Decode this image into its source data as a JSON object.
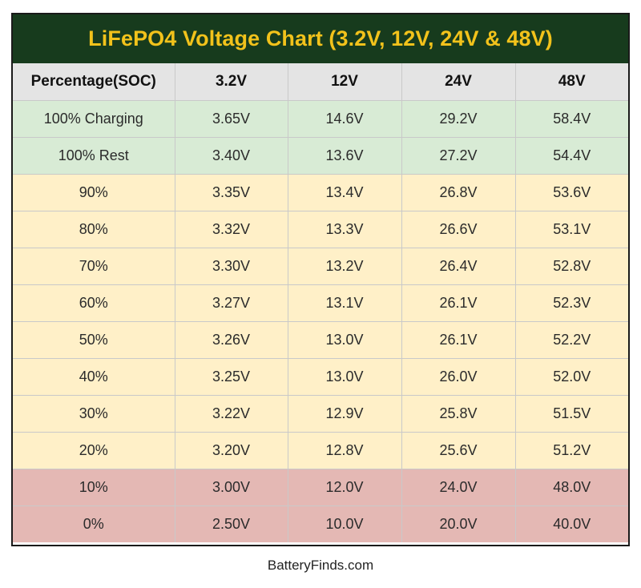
{
  "chart_data": {
    "type": "table",
    "title": "LiFePO4 Voltage Chart (3.2V, 12V, 24V & 48V)",
    "columns": [
      "Percentage(SOC)",
      "3.2V",
      "12V",
      "24V",
      "48V"
    ],
    "rows": [
      {
        "soc": "100% Charging",
        "values": [
          "3.65V",
          "14.6V",
          "29.2V",
          "58.4V"
        ],
        "band": "green"
      },
      {
        "soc": "100% Rest",
        "values": [
          "3.40V",
          "13.6V",
          "27.2V",
          "54.4V"
        ],
        "band": "green"
      },
      {
        "soc": "90%",
        "values": [
          "3.35V",
          "13.4V",
          "26.8V",
          "53.6V"
        ],
        "band": "yellow"
      },
      {
        "soc": "80%",
        "values": [
          "3.32V",
          "13.3V",
          "26.6V",
          "53.1V"
        ],
        "band": "yellow"
      },
      {
        "soc": "70%",
        "values": [
          "3.30V",
          "13.2V",
          "26.4V",
          "52.8V"
        ],
        "band": "yellow"
      },
      {
        "soc": "60%",
        "values": [
          "3.27V",
          "13.1V",
          "26.1V",
          "52.3V"
        ],
        "band": "yellow"
      },
      {
        "soc": "50%",
        "values": [
          "3.26V",
          "13.0V",
          "26.1V",
          "52.2V"
        ],
        "band": "yellow"
      },
      {
        "soc": "40%",
        "values": [
          "3.25V",
          "13.0V",
          "26.0V",
          "52.0V"
        ],
        "band": "yellow"
      },
      {
        "soc": "30%",
        "values": [
          "3.22V",
          "12.9V",
          "25.8V",
          "51.5V"
        ],
        "band": "yellow"
      },
      {
        "soc": "20%",
        "values": [
          "3.20V",
          "12.8V",
          "25.6V",
          "51.2V"
        ],
        "band": "yellow"
      },
      {
        "soc": "10%",
        "values": [
          "3.00V",
          "12.0V",
          "24.0V",
          "48.0V"
        ],
        "band": "red"
      },
      {
        "soc": "0%",
        "values": [
          "2.50V",
          "10.0V",
          "20.0V",
          "40.0V"
        ],
        "band": "red"
      }
    ]
  },
  "footer": {
    "credit": "BatteryFinds.com"
  },
  "colors": {
    "title_background": "#173b1d",
    "title_text": "#f2c21b",
    "header_background": "#e4e4e4",
    "band_green": "#d8ebd5",
    "band_yellow": "#fff0c8",
    "band_red": "#e4b8b4"
  }
}
